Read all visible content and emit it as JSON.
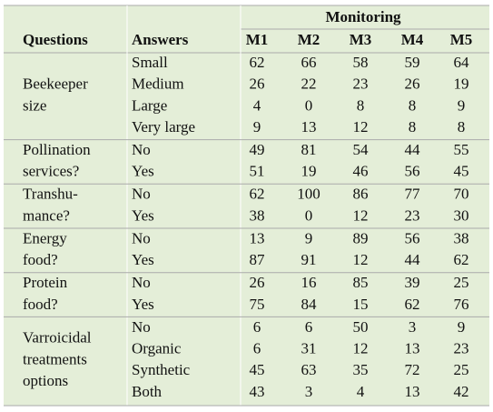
{
  "header": {
    "monitoring": "Monitoring",
    "columns": [
      "Questions",
      "Answers",
      "M1",
      "M2",
      "M3",
      "M4",
      "M5"
    ]
  },
  "groups": [
    {
      "question": [
        "Beekeeper",
        "size"
      ],
      "rows": [
        {
          "answer": "Small",
          "values": [
            62,
            66,
            58,
            59,
            64
          ]
        },
        {
          "answer": "Medium",
          "values": [
            26,
            22,
            23,
            26,
            19
          ]
        },
        {
          "answer": "Large",
          "values": [
            4,
            0,
            8,
            8,
            9
          ]
        },
        {
          "answer": "Very large",
          "values": [
            9,
            13,
            12,
            8,
            8
          ]
        }
      ]
    },
    {
      "question": [
        "Pollination",
        "services?"
      ],
      "rows": [
        {
          "answer": "No",
          "values": [
            49,
            81,
            54,
            44,
            55
          ]
        },
        {
          "answer": "Yes",
          "values": [
            51,
            19,
            46,
            56,
            45
          ]
        }
      ]
    },
    {
      "question": [
        "Transhu-",
        "mance?"
      ],
      "rows": [
        {
          "answer": "No",
          "values": [
            62,
            100,
            86,
            77,
            70
          ]
        },
        {
          "answer": "Yes",
          "values": [
            38,
            0,
            12,
            23,
            30
          ]
        }
      ]
    },
    {
      "question": [
        "Energy",
        "food?"
      ],
      "rows": [
        {
          "answer": "No",
          "values": [
            13,
            9,
            89,
            56,
            38
          ]
        },
        {
          "answer": "Yes",
          "values": [
            87,
            91,
            12,
            44,
            62
          ]
        }
      ]
    },
    {
      "question": [
        "Protein",
        "food?"
      ],
      "rows": [
        {
          "answer": "No",
          "values": [
            26,
            16,
            85,
            39,
            25
          ]
        },
        {
          "answer": "Yes",
          "values": [
            75,
            84,
            15,
            62,
            76
          ]
        }
      ]
    },
    {
      "question": [
        "Varroicidal",
        "treatments",
        "options"
      ],
      "rows": [
        {
          "answer": "No",
          "values": [
            6,
            6,
            50,
            3,
            9
          ]
        },
        {
          "answer": "Organic",
          "values": [
            6,
            31,
            12,
            13,
            23
          ]
        },
        {
          "answer": "Synthetic",
          "values": [
            45,
            63,
            35,
            72,
            25
          ]
        },
        {
          "answer": "Both",
          "values": [
            43,
            3,
            4,
            13,
            42
          ]
        }
      ]
    }
  ]
}
